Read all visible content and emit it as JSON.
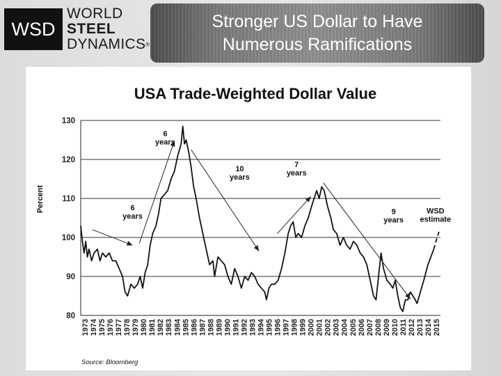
{
  "logo": {
    "mark": "WSD",
    "line1": "WORLD",
    "line2": "STEEL",
    "line3": "DYNAMICS",
    "registered": "®"
  },
  "header": {
    "title_line1": "Stronger US Dollar to Have",
    "title_line2": "Numerous Ramifications"
  },
  "chart_data": {
    "type": "line",
    "title": "USA Trade-Weighted Dollar Value",
    "ylabel": "Percent",
    "xlabel": "",
    "ylim": [
      80,
      130
    ],
    "yticks": [
      80,
      90,
      100,
      110,
      120,
      130
    ],
    "xlim": [
      1973,
      2016
    ],
    "xticks": [
      "1973",
      "1974",
      "1975",
      "1976",
      "1977",
      "1978",
      "1979",
      "1980",
      "1981",
      "1982",
      "1983",
      "1984",
      "1985",
      "1986",
      "1987",
      "1988",
      "1989",
      "1990",
      "1991",
      "1992",
      "1993",
      "1994",
      "1995",
      "1996",
      "1997",
      "1998",
      "1999",
      "2000",
      "2001",
      "2002",
      "2003",
      "2004",
      "2005",
      "2006",
      "2007",
      "2008",
      "2009",
      "2010",
      "2011",
      "2012",
      "2013",
      "2014",
      "2015"
    ],
    "grid": true,
    "source": "Source:  Bloomberg",
    "series": [
      {
        "style": "solid",
        "points": [
          [
            1973.0,
            103
          ],
          [
            1973.2,
            99
          ],
          [
            1973.4,
            96
          ],
          [
            1973.6,
            99
          ],
          [
            1973.8,
            95
          ],
          [
            1974.0,
            97
          ],
          [
            1974.3,
            94
          ],
          [
            1974.6,
            96
          ],
          [
            1975.0,
            97
          ],
          [
            1975.3,
            94
          ],
          [
            1975.6,
            96
          ],
          [
            1976.0,
            95
          ],
          [
            1976.4,
            96
          ],
          [
            1976.8,
            94
          ],
          [
            1977.2,
            94
          ],
          [
            1977.6,
            92
          ],
          [
            1978.0,
            90
          ],
          [
            1978.3,
            86
          ],
          [
            1978.6,
            85
          ],
          [
            1979.0,
            88
          ],
          [
            1979.4,
            87
          ],
          [
            1979.8,
            88
          ],
          [
            1980.1,
            90
          ],
          [
            1980.4,
            87
          ],
          [
            1980.7,
            91
          ],
          [
            1981.0,
            93
          ],
          [
            1981.3,
            98
          ],
          [
            1981.6,
            101
          ],
          [
            1982.0,
            103
          ],
          [
            1982.3,
            106
          ],
          [
            1982.6,
            110
          ],
          [
            1983.0,
            111
          ],
          [
            1983.4,
            112
          ],
          [
            1983.8,
            115
          ],
          [
            1984.2,
            117
          ],
          [
            1984.6,
            121
          ],
          [
            1985.0,
            124
          ],
          [
            1985.2,
            128.5
          ],
          [
            1985.4,
            124
          ],
          [
            1985.6,
            125
          ],
          [
            1985.9,
            122
          ],
          [
            1986.2,
            118
          ],
          [
            1986.5,
            113
          ],
          [
            1986.8,
            110
          ],
          [
            1987.2,
            105
          ],
          [
            1987.6,
            101
          ],
          [
            1988.0,
            97
          ],
          [
            1988.4,
            93
          ],
          [
            1988.8,
            94
          ],
          [
            1989.0,
            90
          ],
          [
            1989.4,
            95
          ],
          [
            1989.8,
            94
          ],
          [
            1990.2,
            93
          ],
          [
            1990.6,
            90
          ],
          [
            1991.0,
            88
          ],
          [
            1991.4,
            92
          ],
          [
            1991.8,
            90
          ],
          [
            1992.2,
            87
          ],
          [
            1992.6,
            90
          ],
          [
            1993.0,
            89
          ],
          [
            1993.4,
            91
          ],
          [
            1993.8,
            90
          ],
          [
            1994.2,
            88
          ],
          [
            1994.6,
            87
          ],
          [
            1995.0,
            86
          ],
          [
            1995.2,
            84
          ],
          [
            1995.5,
            87
          ],
          [
            1995.8,
            88
          ],
          [
            1996.2,
            88
          ],
          [
            1996.6,
            89
          ],
          [
            1997.0,
            92
          ],
          [
            1997.4,
            96
          ],
          [
            1997.8,
            101
          ],
          [
            1998.1,
            103
          ],
          [
            1998.4,
            104
          ],
          [
            1998.7,
            100
          ],
          [
            1999.0,
            101
          ],
          [
            1999.4,
            100
          ],
          [
            1999.8,
            103
          ],
          [
            2000.2,
            105
          ],
          [
            2000.6,
            108
          ],
          [
            2000.9,
            110
          ],
          [
            2001.2,
            112
          ],
          [
            2001.5,
            110
          ],
          [
            2001.8,
            113
          ],
          [
            2002.1,
            112
          ],
          [
            2002.5,
            108
          ],
          [
            2002.9,
            105
          ],
          [
            2003.2,
            102
          ],
          [
            2003.6,
            101
          ],
          [
            2004.0,
            98
          ],
          [
            2004.4,
            100
          ],
          [
            2004.8,
            98
          ],
          [
            2005.2,
            97
          ],
          [
            2005.6,
            99
          ],
          [
            2006.0,
            98
          ],
          [
            2006.4,
            96
          ],
          [
            2006.8,
            95
          ],
          [
            2007.2,
            93
          ],
          [
            2007.6,
            89
          ],
          [
            2008.0,
            85
          ],
          [
            2008.3,
            84
          ],
          [
            2008.6,
            90
          ],
          [
            2008.9,
            96
          ],
          [
            2009.2,
            92
          ],
          [
            2009.6,
            89
          ],
          [
            2010.0,
            88
          ],
          [
            2010.3,
            87
          ],
          [
            2010.6,
            89
          ],
          [
            2010.9,
            85
          ],
          [
            2011.2,
            82
          ],
          [
            2011.5,
            81
          ],
          [
            2011.8,
            84
          ],
          [
            2012.1,
            84
          ],
          [
            2012.4,
            86
          ],
          [
            2012.7,
            85
          ],
          [
            2013.0,
            84
          ],
          [
            2013.2,
            83
          ]
        ]
      },
      {
        "style": "solid",
        "points": [
          [
            2013.2,
            83
          ],
          [
            2013.6,
            86
          ],
          [
            2014.0,
            89
          ],
          [
            2014.5,
            93
          ],
          [
            2015.2,
            97
          ]
        ]
      },
      {
        "style": "dashed",
        "points": [
          [
            2015.2,
            97
          ],
          [
            2015.6,
            100
          ],
          [
            2015.9,
            102
          ]
        ]
      }
    ],
    "annotations": [
      {
        "text": [
          "6",
          "years"
        ],
        "x": 1979.2,
        "y": 107
      },
      {
        "text": [
          "6",
          "years"
        ],
        "x": 1983.1,
        "y": 126
      },
      {
        "text": [
          "10",
          "years"
        ],
        "x": 1992.0,
        "y": 117
      },
      {
        "text": [
          "7",
          "years"
        ],
        "x": 1998.8,
        "y": 118
      },
      {
        "text": [
          "9",
          "years"
        ],
        "x": 2010.4,
        "y": 106
      },
      {
        "text": [
          "WSD",
          "estimate"
        ],
        "x": 2015.4,
        "y": 106.2
      }
    ],
    "arrows": [
      {
        "from": [
          1974.4,
          102.0
        ],
        "to": [
          1979.2,
          98.0
        ]
      },
      {
        "from": [
          1980.0,
          98.5
        ],
        "to": [
          1984.2,
          124.8
        ]
      },
      {
        "from": [
          1986.2,
          122.5
        ],
        "to": [
          1994.3,
          96.5
        ]
      },
      {
        "from": [
          1996.5,
          101.0
        ],
        "to": [
          2000.5,
          110.5
        ]
      },
      {
        "from": [
          2002.0,
          114.0
        ],
        "to": [
          2012.4,
          84.2
        ]
      }
    ]
  }
}
